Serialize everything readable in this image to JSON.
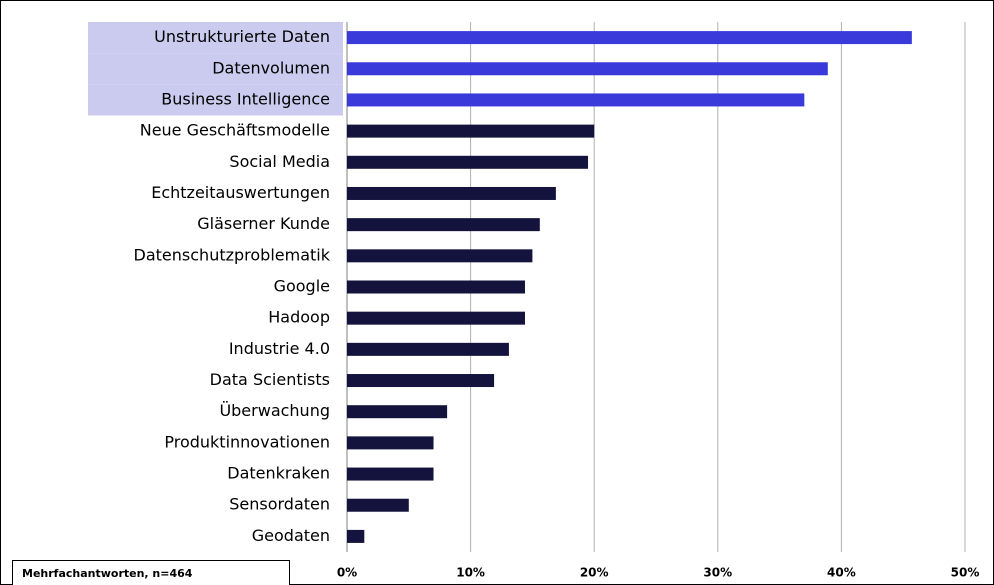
{
  "chart_data": {
    "type": "bar",
    "categories": [
      "Unstrukturierte Daten",
      "Datenvolumen",
      "Business Intelligence",
      "Neue Geschäftsmodelle",
      "Social Media",
      "Echtzeitauswertungen",
      "Gläserner Kunde",
      "Datenschutzproblematik",
      "Google",
      "Hadoop",
      "Industrie 4.0",
      "Data Scientists",
      "Überwachung",
      "Produktinnovationen",
      "Datenkraken",
      "Sensordaten",
      "Geodaten"
    ],
    "values": [
      45.7,
      38.9,
      37.0,
      20.0,
      19.5,
      16.9,
      15.6,
      15.0,
      14.4,
      14.4,
      13.1,
      11.9,
      8.1,
      7.0,
      7.0,
      5.0,
      1.4
    ],
    "colors": [
      "#3a3adb",
      "#3a3adb",
      "#3a3adb",
      "#13133d",
      "#13133d",
      "#13133d",
      "#13133d",
      "#13133d",
      "#13133d",
      "#13133d",
      "#13133d",
      "#13133d",
      "#13133d",
      "#13133d",
      "#13133d",
      "#13133d",
      "#13133d"
    ],
    "label_backgrounds": [
      "#cbcbef",
      "#cbcbef",
      "#cbcbef",
      null,
      null,
      null,
      null,
      null,
      null,
      null,
      null,
      null,
      null,
      null,
      null,
      null,
      null
    ],
    "xlim": [
      0,
      50
    ],
    "xticks": [
      {
        "value": 0,
        "label": "0%"
      },
      {
        "value": 10,
        "label": "10%"
      },
      {
        "value": 20,
        "label": "20%"
      },
      {
        "value": 30,
        "label": "30%"
      },
      {
        "value": 40,
        "label": "40%"
      },
      {
        "value": 50,
        "label": "50%"
      }
    ],
    "grid": true,
    "note": "Mehrfachantworten, n=464"
  }
}
